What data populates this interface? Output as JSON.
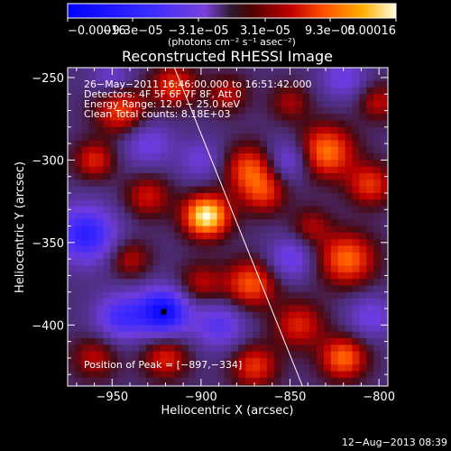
{
  "chart_data": {
    "type": "heatmap",
    "title": "Reconstructed RHESSI Image",
    "xlabel": "Heliocentric X (arcsec)",
    "ylabel": "Heliocentric Y (arcsec)",
    "xlim": [
      -975,
      -795
    ],
    "ylim": [
      -437,
      -244
    ],
    "x_ticks": [
      -950,
      -900,
      -850,
      -800
    ],
    "x_tick_labels": [
      "−950",
      "−900",
      "−850",
      "−800"
    ],
    "y_ticks": [
      -250,
      -300,
      -350,
      -400
    ],
    "y_tick_labels": [
      "−250",
      "−300",
      "−350",
      "−400"
    ],
    "colorbar": {
      "range": [
        -0.00016,
        0.00016
      ],
      "tick_labels": [
        "−0.00016",
        "−9.3e−05",
        "−3.1e−05",
        "3.1e−05",
        "9.3e−05",
        "0.00016"
      ],
      "unit_label": "(photons cm⁻² s⁻¹ asec⁻²)"
    },
    "annotations": [
      "26−May−2011 16:46:00.000 to 16:51:42.000",
      "Detectors: 4F 5F 6F 7F 8F, Att 0",
      "Energy Range: 12.0 − 25.0 keV",
      "Clean      Total counts: 8.18E+03"
    ],
    "peak_label": "Position of Peak = [−897,−334]",
    "peak_position": [
      -897,
      -334
    ],
    "limb_line": {
      "from": [
        -915,
        -244
      ],
      "to": [
        -843,
        -437
      ]
    },
    "hotspots": [
      {
        "x": -897,
        "y": -334,
        "amp": 1.0,
        "r": 9
      },
      {
        "x": -945,
        "y": -270,
        "amp": 0.55,
        "r": 10
      },
      {
        "x": -915,
        "y": -255,
        "amp": 0.5,
        "r": 9
      },
      {
        "x": -873,
        "y": -305,
        "amp": 0.55,
        "r": 10
      },
      {
        "x": -830,
        "y": -295,
        "amp": 0.7,
        "r": 11
      },
      {
        "x": -865,
        "y": -320,
        "amp": 0.45,
        "r": 9
      },
      {
        "x": -930,
        "y": -322,
        "amp": 0.4,
        "r": 9
      },
      {
        "x": -872,
        "y": -375,
        "amp": 0.6,
        "r": 10
      },
      {
        "x": -818,
        "y": -360,
        "amp": 0.65,
        "r": 11
      },
      {
        "x": -805,
        "y": -315,
        "amp": 0.5,
        "r": 9
      },
      {
        "x": -960,
        "y": -300,
        "amp": 0.45,
        "r": 8
      },
      {
        "x": -940,
        "y": -360,
        "amp": 0.35,
        "r": 8
      },
      {
        "x": -900,
        "y": -375,
        "amp": 0.35,
        "r": 9
      },
      {
        "x": -845,
        "y": -400,
        "amp": 0.45,
        "r": 10
      },
      {
        "x": -820,
        "y": -420,
        "amp": 0.65,
        "r": 9
      },
      {
        "x": -870,
        "y": -425,
        "amp": 0.5,
        "r": 9
      },
      {
        "x": -960,
        "y": -420,
        "amp": 0.35,
        "r": 9
      },
      {
        "x": -920,
        "y": -420,
        "amp": 0.45,
        "r": 9
      },
      {
        "x": -885,
        "y": -260,
        "amp": 0.35,
        "r": 8
      },
      {
        "x": -850,
        "y": -265,
        "amp": 0.3,
        "r": 8
      },
      {
        "x": -800,
        "y": -265,
        "amp": 0.35,
        "r": 8
      },
      {
        "x": -838,
        "y": -340,
        "amp": 0.3,
        "r": 8
      }
    ],
    "coldspots": [
      {
        "x": -965,
        "y": -345,
        "amp": -0.7,
        "r": 12
      },
      {
        "x": -921,
        "y": -392,
        "amp": -0.9,
        "r": 10
      },
      {
        "x": -945,
        "y": -395,
        "amp": -0.55,
        "r": 10
      },
      {
        "x": -890,
        "y": -400,
        "amp": -0.45,
        "r": 10
      },
      {
        "x": -930,
        "y": -290,
        "amp": -0.35,
        "r": 10
      },
      {
        "x": -850,
        "y": -300,
        "amp": -0.4,
        "r": 9
      },
      {
        "x": -820,
        "y": -250,
        "amp": -0.35,
        "r": 9
      },
      {
        "x": -850,
        "y": -360,
        "amp": -0.4,
        "r": 9
      },
      {
        "x": -805,
        "y": -395,
        "amp": -0.35,
        "r": 9
      },
      {
        "x": -900,
        "y": -300,
        "amp": -0.3,
        "r": 9
      },
      {
        "x": -950,
        "y": -250,
        "amp": -0.3,
        "r": 8
      }
    ]
  },
  "footer": {
    "timestamp": "12−Aug−2013 08:39"
  }
}
